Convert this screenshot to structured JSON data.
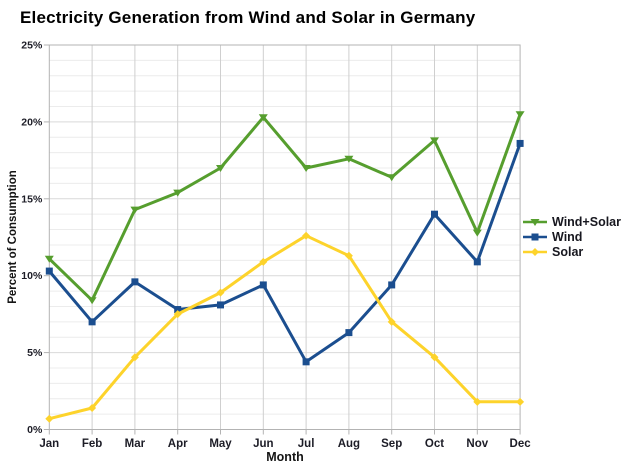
{
  "chart_data": {
    "type": "line",
    "title": "Electricity Generation from Wind and Solar in Germany",
    "xlabel": "Month",
    "ylabel": "Percent of Consumption",
    "categories": [
      "Jan",
      "Feb",
      "Mar",
      "Apr",
      "May",
      "Jun",
      "Jul",
      "Aug",
      "Sep",
      "Oct",
      "Nov",
      "Dec"
    ],
    "series": [
      {
        "name": "Wind+Solar",
        "color": "#569e2e",
        "marker": "triangle-down",
        "values": [
          11.1,
          8.4,
          14.3,
          15.4,
          17.0,
          20.3,
          17.0,
          17.6,
          16.4,
          18.8,
          12.8,
          20.5
        ]
      },
      {
        "name": "Wind",
        "color": "#1b4e8f",
        "marker": "square",
        "values": [
          10.3,
          7.0,
          9.6,
          7.8,
          8.1,
          9.4,
          4.4,
          6.3,
          9.4,
          14.0,
          10.9,
          18.6
        ]
      },
      {
        "name": "Solar",
        "color": "#fdd32b",
        "marker": "diamond",
        "values": [
          0.7,
          1.4,
          4.7,
          7.5,
          8.9,
          10.9,
          12.6,
          11.3,
          7.0,
          4.7,
          1.8,
          1.8
        ]
      }
    ],
    "ylim": [
      0,
      25
    ],
    "ytick_step": 5,
    "minor_ytick_step": 1,
    "ytick_suffix": "%",
    "grid": true,
    "legend_position": "right"
  },
  "colors": {
    "grid_minor": "#ececec",
    "grid_major": "#d9d9d9",
    "grid_vert": "#cfcfcf",
    "axis": "#b3b3b3",
    "tick_text": "#1c1c26",
    "title_text": "#000000",
    "background": "#ffffff"
  }
}
